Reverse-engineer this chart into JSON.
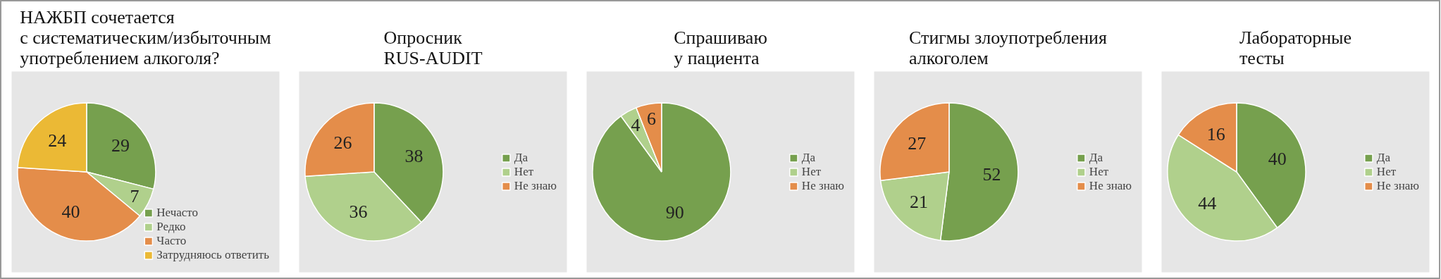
{
  "chart_data": [
    {
      "type": "pie",
      "title": "НАЖБП сочетается\nс систематическим/избыточным\nупотреблением алкоголя?",
      "categories": [
        "Нечасто",
        "Редко",
        "Часто",
        "Затрудняюсь ответить"
      ],
      "values": [
        29,
        7,
        40,
        24
      ],
      "colors": [
        "#76a04e",
        "#b0d08c",
        "#e48d4a",
        "#ebb935"
      ],
      "data_labels": true,
      "legend": "bottom right"
    },
    {
      "type": "pie",
      "title": "Опросник\nRUS-AUDIT",
      "categories": [
        "Да",
        "Нет",
        "Не знаю"
      ],
      "values": [
        38,
        36,
        26
      ],
      "colors": [
        "#76a04e",
        "#b0d08c",
        "#e48d4a"
      ],
      "data_labels": true,
      "legend": "right"
    },
    {
      "type": "pie",
      "title": "Спрашиваю\nу пациента",
      "categories": [
        "Да",
        "Нет",
        "Не знаю"
      ],
      "values": [
        90,
        4,
        6
      ],
      "colors": [
        "#76a04e",
        "#b0d08c",
        "#e48d4a"
      ],
      "data_labels": true,
      "legend": "right"
    },
    {
      "type": "pie",
      "title": "Стигмы злоупотребления\nалкоголем",
      "categories": [
        "Да",
        "Нет",
        "Не знаю"
      ],
      "values": [
        52,
        21,
        27
      ],
      "colors": [
        "#76a04e",
        "#b0d08c",
        "#e48d4a"
      ],
      "data_labels": true,
      "legend": "right"
    },
    {
      "type": "pie",
      "title": "Лабораторные\nтесты",
      "categories": [
        "Да",
        "Нет",
        "Не знаю"
      ],
      "values": [
        40,
        44,
        16
      ],
      "colors": [
        "#76a04e",
        "#b0d08c",
        "#e48d4a"
      ],
      "data_labels": true,
      "legend": "right"
    }
  ]
}
